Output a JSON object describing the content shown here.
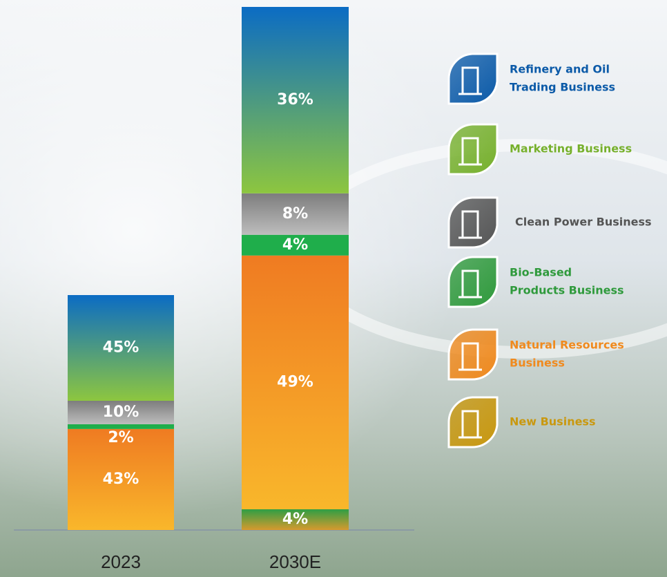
{
  "chart_data": {
    "type": "stacked-bar",
    "categories": [
      "2023",
      "2030E"
    ],
    "series": [
      {
        "color": "#2f9e44",
        "color2": "#d69a2e",
        "values": [
          null,
          4
        ],
        "value_labels": [
          null,
          "4%"
        ]
      },
      {
        "color": "#ef7b22",
        "color2": "#f9b72b",
        "values": [
          43,
          49
        ],
        "value_labels": [
          "43%",
          "49%"
        ]
      },
      {
        "color": "#1fae4b",
        "color2": "#1fae4b",
        "values": [
          2,
          4
        ],
        "value_labels": [
          "2%",
          "4%"
        ]
      },
      {
        "color": "#7d7d7d",
        "color2": "#bdbdbd",
        "values": [
          10,
          8
        ],
        "value_labels": [
          "10%",
          "8%"
        ]
      },
      {
        "color": "#0b6cc4",
        "color2": "#8dc63f",
        "values": [
          45,
          36
        ],
        "value_labels": [
          "45%",
          "36%"
        ]
      }
    ],
    "legend": [
      {
        "lines": [
          "Refinery and Oil",
          "Trading Business"
        ],
        "color": "#0b5aa8"
      },
      {
        "lines": [
          "Marketing Business"
        ],
        "color": "#76b02c"
      },
      {
        "lines": [
          "Clean Power Business"
        ],
        "color": "#555555"
      },
      {
        "lines": [
          "Bio-Based",
          "Products Business"
        ],
        "color": "#2f9a3c"
      },
      {
        "lines": [
          "Natural Resources",
          "Business"
        ],
        "color": "#f08a1e"
      },
      {
        "lines": [
          "New Business"
        ],
        "color": "#c9980f"
      }
    ]
  }
}
